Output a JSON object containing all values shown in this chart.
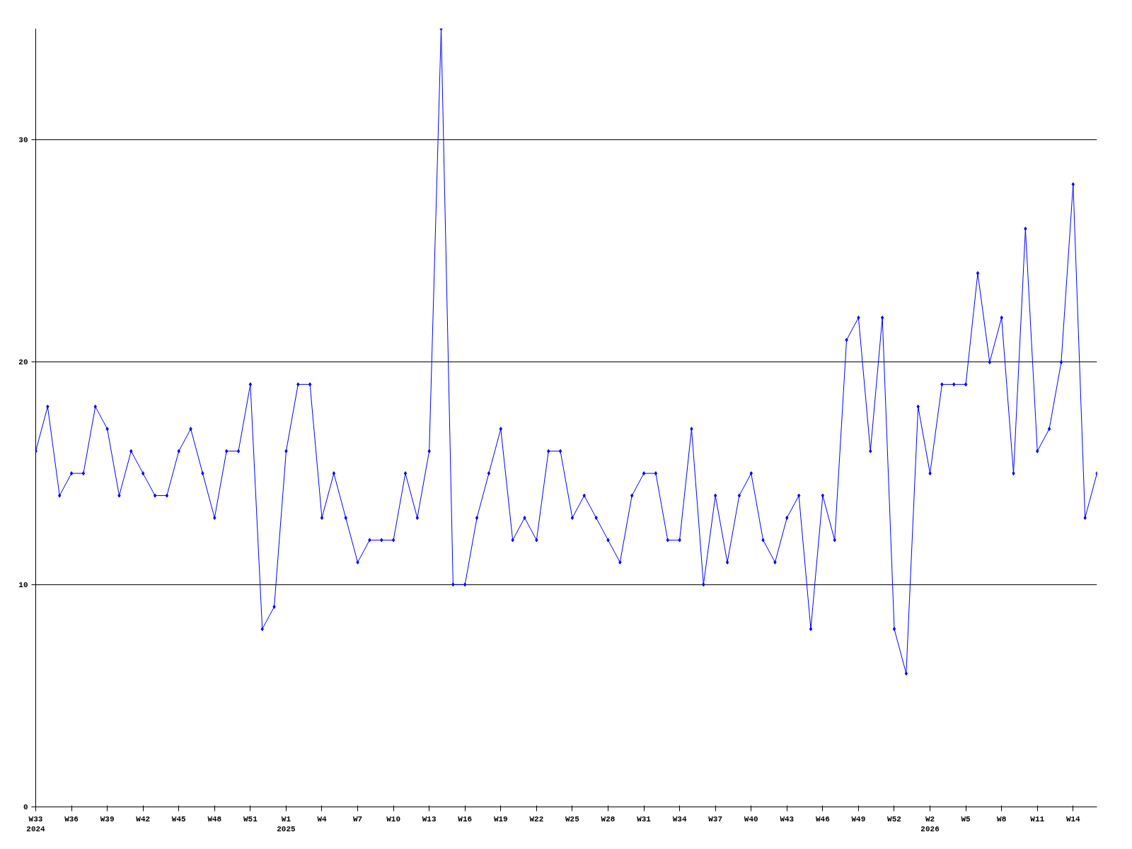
{
  "chart_data": {
    "type": "line",
    "categories": [
      "W33\n2024",
      null,
      null,
      "W36",
      null,
      null,
      "W39",
      null,
      null,
      "W42",
      null,
      null,
      "W45",
      null,
      null,
      "W48",
      null,
      null,
      "W51",
      null,
      null,
      "W1\n2025",
      null,
      null,
      "W4",
      null,
      null,
      "W7",
      null,
      null,
      "W10",
      null,
      null,
      "W13",
      null,
      null,
      "W16",
      null,
      null,
      "W19",
      null,
      null,
      "W22",
      null,
      null,
      "W25",
      null,
      null,
      "W28",
      null,
      null,
      "W31",
      null,
      null,
      "W34",
      null,
      null,
      "W37",
      null,
      null,
      "W40",
      null,
      null,
      "W43",
      null,
      null,
      "W46",
      null,
      null,
      "W49",
      null,
      null,
      "W52",
      null,
      null,
      "W2\n2026",
      null,
      null,
      "W5",
      null,
      null,
      "W8",
      null,
      null,
      "W11",
      null,
      null,
      "W14",
      null,
      null
    ],
    "series": [
      {
        "color": "#0000ff",
        "values": [
          16,
          18,
          14,
          15,
          15,
          18,
          17,
          14,
          16,
          15,
          14,
          14,
          16,
          17,
          15,
          13,
          16,
          16,
          19,
          8,
          9,
          16,
          19,
          19,
          13,
          15,
          13,
          11,
          12,
          12,
          12,
          15,
          13,
          16,
          35,
          10,
          10,
          13,
          15,
          17,
          12,
          13,
          12,
          16,
          16,
          13,
          14,
          13,
          12,
          11,
          14,
          15,
          15,
          12,
          12,
          17,
          10,
          14,
          11,
          14,
          15,
          12,
          11,
          13,
          14,
          8,
          14,
          12,
          21,
          22,
          16,
          22,
          8,
          6,
          18,
          15,
          19,
          19,
          19,
          24,
          20,
          22,
          15,
          26,
          16,
          17,
          20,
          28,
          13,
          15
        ]
      }
    ],
    "ylim": [
      0,
      35
    ],
    "yticks": [
      0,
      10,
      20,
      30
    ],
    "grid": "y",
    "marker": "diamond",
    "line_style": "solid"
  }
}
